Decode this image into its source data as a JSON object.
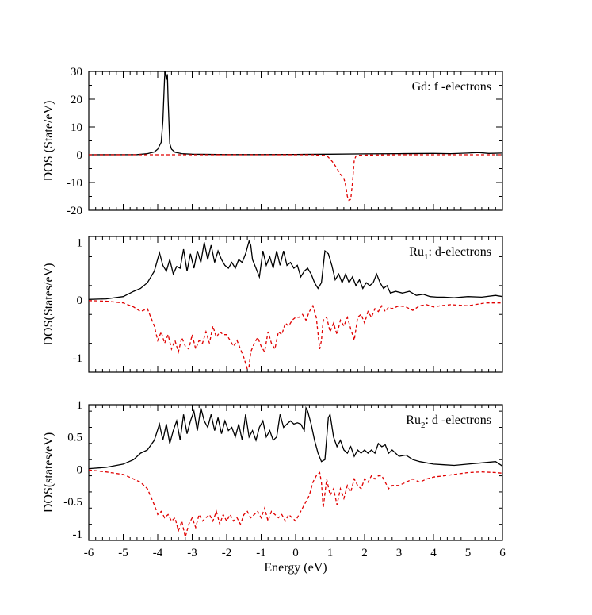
{
  "chart_data": [
    {
      "type": "line",
      "panel_label": "Gd: f -electrons",
      "panel_label_sub": "",
      "panel_label_rest": "",
      "ylabel": "DOS (State/eV)",
      "xlabel": "",
      "xlim": [
        -6,
        6
      ],
      "ylim": [
        -20,
        30
      ],
      "yticks": [
        -20,
        -10,
        0,
        10,
        20,
        30
      ],
      "ytick_labels": [
        "-20",
        "-10",
        "0",
        "10",
        "20",
        "30"
      ],
      "colors": {
        "up": "#000000",
        "down": "#e00000"
      },
      "series": [
        {
          "style": "solid",
          "x": [
            -6,
            -4.6,
            -4.3,
            -4.1,
            -4.0,
            -3.9,
            -3.85,
            -3.8,
            -3.78,
            -3.75,
            -3.72,
            -3.7,
            -3.65,
            -3.6,
            -3.5,
            -3.3,
            -3,
            -2,
            -1,
            0,
            1,
            2,
            3,
            4,
            4.5,
            5,
            5.3,
            5.6,
            6
          ],
          "y": [
            0,
            0.05,
            0.4,
            1.0,
            2.0,
            4.5,
            12,
            28,
            30,
            27,
            29,
            20,
            4,
            2,
            0.9,
            0.4,
            0.2,
            0.05,
            0.05,
            0.1,
            0.2,
            0.3,
            0.4,
            0.5,
            0.4,
            0.6,
            0.8,
            0.5,
            0.6
          ]
        },
        {
          "style": "dashed",
          "x": [
            -6,
            -3,
            0,
            0.5,
            0.9,
            1.0,
            1.1,
            1.2,
            1.3,
            1.4,
            1.45,
            1.5,
            1.55,
            1.6,
            1.65,
            1.7,
            1.75,
            1.8,
            2.0,
            3,
            4,
            5,
            6
          ],
          "y": [
            0,
            0,
            0,
            0,
            -0.3,
            -1.5,
            -3,
            -5,
            -7,
            -8.5,
            -11,
            -15,
            -16.5,
            -16,
            -10,
            -2,
            -0.5,
            -0.2,
            -0.1,
            0,
            0,
            0,
            0
          ]
        }
      ]
    },
    {
      "type": "line",
      "panel_label": "Ru",
      "panel_label_sub": "1",
      "panel_label_rest": ": d-electrons",
      "ylabel": "DOS(States/eV)",
      "xlabel": "",
      "xlim": [
        -6,
        6
      ],
      "ylim": [
        -1.25,
        1.1
      ],
      "yticks": [
        -1,
        0,
        1
      ],
      "ytick_labels": [
        "-1",
        "0",
        "1"
      ],
      "colors": {
        "up": "#000000",
        "down": "#e00000"
      },
      "series": [
        {
          "style": "solid",
          "x": [
            -6,
            -5.5,
            -5.0,
            -4.7,
            -4.5,
            -4.3,
            -4.1,
            -3.95,
            -3.85,
            -3.75,
            -3.65,
            -3.55,
            -3.45,
            -3.35,
            -3.25,
            -3.15,
            -3.05,
            -2.95,
            -2.85,
            -2.75,
            -2.65,
            -2.55,
            -2.45,
            -2.35,
            -2.25,
            -2.15,
            -2.05,
            -1.95,
            -1.85,
            -1.75,
            -1.65,
            -1.55,
            -1.45,
            -1.35,
            -1.3,
            -1.25,
            -1.15,
            -1.05,
            -0.95,
            -0.85,
            -0.75,
            -0.65,
            -0.55,
            -0.45,
            -0.35,
            -0.25,
            -0.15,
            -0.05,
            0.05,
            0.15,
            0.25,
            0.35,
            0.45,
            0.55,
            0.65,
            0.75,
            0.85,
            0.95,
            1.05,
            1.15,
            1.25,
            1.35,
            1.45,
            1.55,
            1.65,
            1.75,
            1.85,
            1.95,
            2.05,
            2.15,
            2.25,
            2.35,
            2.45,
            2.55,
            2.65,
            2.75,
            2.9,
            3.1,
            3.3,
            3.5,
            3.7,
            3.9,
            4.1,
            4.3,
            4.6,
            5.0,
            5.4,
            5.8,
            6.0
          ],
          "y": [
            0.01,
            0.02,
            0.06,
            0.15,
            0.2,
            0.3,
            0.5,
            0.82,
            0.6,
            0.5,
            0.7,
            0.45,
            0.58,
            0.55,
            0.88,
            0.5,
            0.8,
            0.55,
            0.85,
            0.65,
            1.0,
            0.7,
            0.95,
            0.65,
            0.85,
            0.7,
            0.6,
            0.55,
            0.65,
            0.55,
            0.7,
            0.65,
            0.8,
            1.02,
            0.95,
            0.7,
            0.55,
            0.4,
            0.85,
            0.6,
            0.75,
            0.55,
            0.85,
            0.6,
            0.85,
            0.6,
            0.65,
            0.55,
            0.6,
            0.4,
            0.5,
            0.55,
            0.45,
            0.3,
            0.2,
            0.3,
            0.85,
            0.8,
            0.6,
            0.35,
            0.45,
            0.3,
            0.45,
            0.3,
            0.4,
            0.25,
            0.35,
            0.2,
            0.3,
            0.25,
            0.3,
            0.45,
            0.3,
            0.2,
            0.25,
            0.12,
            0.15,
            0.12,
            0.15,
            0.08,
            0.1,
            0.06,
            0.05,
            0.05,
            0.04,
            0.06,
            0.05,
            0.08,
            0.06
          ]
        },
        {
          "style": "dashed",
          "x": [
            -6,
            -5.5,
            -5.0,
            -4.7,
            -4.5,
            -4.3,
            -4.1,
            -4.0,
            -3.9,
            -3.8,
            -3.7,
            -3.6,
            -3.5,
            -3.4,
            -3.3,
            -3.2,
            -3.1,
            -3.0,
            -2.9,
            -2.8,
            -2.7,
            -2.6,
            -2.5,
            -2.4,
            -2.3,
            -2.2,
            -2.1,
            -2.0,
            -1.9,
            -1.8,
            -1.7,
            -1.6,
            -1.5,
            -1.4,
            -1.35,
            -1.3,
            -1.2,
            -1.1,
            -1.0,
            -0.9,
            -0.8,
            -0.7,
            -0.6,
            -0.5,
            -0.4,
            -0.3,
            -0.2,
            -0.1,
            0.0,
            0.1,
            0.2,
            0.3,
            0.4,
            0.5,
            0.6,
            0.7,
            0.75,
            0.8,
            0.9,
            1.0,
            1.1,
            1.2,
            1.3,
            1.4,
            1.5,
            1.6,
            1.7,
            1.8,
            1.9,
            2.0,
            2.1,
            2.2,
            2.3,
            2.4,
            2.5,
            2.6,
            2.7,
            2.8,
            3.0,
            3.2,
            3.4,
            3.6,
            3.8,
            4.0,
            4.2,
            4.5,
            5.0,
            5.5,
            6.0
          ],
          "y": [
            -0.01,
            -0.02,
            -0.05,
            -0.12,
            -0.2,
            -0.15,
            -0.45,
            -0.7,
            -0.55,
            -0.75,
            -0.6,
            -0.85,
            -0.7,
            -0.9,
            -0.65,
            -0.8,
            -0.85,
            -0.6,
            -0.85,
            -0.7,
            -0.75,
            -0.55,
            -0.75,
            -0.45,
            -0.65,
            -0.55,
            -0.6,
            -0.6,
            -0.7,
            -0.8,
            -0.7,
            -0.85,
            -1.0,
            -1.2,
            -1.15,
            -0.9,
            -0.75,
            -0.65,
            -0.8,
            -0.9,
            -0.55,
            -0.75,
            -0.85,
            -0.55,
            -0.6,
            -0.4,
            -0.45,
            -0.35,
            -0.3,
            -0.3,
            -0.25,
            -0.35,
            -0.2,
            -0.1,
            -0.3,
            -0.85,
            -0.7,
            -0.35,
            -0.3,
            -0.55,
            -0.4,
            -0.6,
            -0.35,
            -0.45,
            -0.3,
            -0.5,
            -0.7,
            -0.3,
            -0.25,
            -0.4,
            -0.2,
            -0.3,
            -0.15,
            -0.2,
            -0.1,
            -0.2,
            -0.12,
            -0.15,
            -0.1,
            -0.12,
            -0.18,
            -0.1,
            -0.08,
            -0.12,
            -0.1,
            -0.08,
            -0.1,
            -0.05,
            -0.05
          ]
        }
      ]
    },
    {
      "type": "line",
      "panel_label": "Ru",
      "panel_label_sub": "2",
      "panel_label_rest": ": d -electrons",
      "ylabel": "DOS(states/eV)",
      "xlabel": "Energy (eV)",
      "xlim": [
        -6,
        6
      ],
      "ylim": [
        -1.1,
        1.0
      ],
      "yticks": [
        -1,
        -0.5,
        0,
        0.5,
        1
      ],
      "ytick_labels": [
        "-1",
        "-0.5",
        "0",
        "0.5",
        "1"
      ],
      "xticks": [
        -6,
        -5,
        -4,
        -3,
        -2,
        -1,
        0,
        1,
        2,
        3,
        4,
        5,
        6
      ],
      "xtick_labels": [
        "-6",
        "-5",
        "-4",
        "-3",
        "-2",
        "-1",
        "0",
        "1",
        "2",
        "3",
        "4",
        "5",
        "6"
      ],
      "colors": {
        "up": "#000000",
        "down": "#e00000"
      },
      "series": [
        {
          "style": "solid",
          "x": [
            -6,
            -5.5,
            -5.0,
            -4.7,
            -4.5,
            -4.3,
            -4.1,
            -3.95,
            -3.85,
            -3.75,
            -3.65,
            -3.55,
            -3.45,
            -3.35,
            -3.25,
            -3.15,
            -3.05,
            -2.95,
            -2.85,
            -2.75,
            -2.65,
            -2.55,
            -2.45,
            -2.35,
            -2.25,
            -2.15,
            -2.05,
            -1.95,
            -1.85,
            -1.75,
            -1.65,
            -1.55,
            -1.45,
            -1.35,
            -1.25,
            -1.15,
            -1.05,
            -0.95,
            -0.85,
            -0.75,
            -0.65,
            -0.55,
            -0.45,
            -0.35,
            -0.25,
            -0.15,
            -0.05,
            0.05,
            0.15,
            0.25,
            0.3,
            0.35,
            0.45,
            0.55,
            0.65,
            0.75,
            0.85,
            0.95,
            1.0,
            1.1,
            1.2,
            1.3,
            1.4,
            1.5,
            1.6,
            1.7,
            1.8,
            1.9,
            2.0,
            2.1,
            2.2,
            2.3,
            2.4,
            2.5,
            2.6,
            2.7,
            2.8,
            3.0,
            3.2,
            3.4,
            3.6,
            3.8,
            4.0,
            4.3,
            4.6,
            5.0,
            5.4,
            5.8,
            6.0
          ],
          "y": [
            0.01,
            0.03,
            0.08,
            0.15,
            0.25,
            0.3,
            0.45,
            0.7,
            0.45,
            0.7,
            0.4,
            0.6,
            0.75,
            0.45,
            0.85,
            0.55,
            0.75,
            0.9,
            0.6,
            0.95,
            0.75,
            0.65,
            0.85,
            0.6,
            0.8,
            0.55,
            0.75,
            0.6,
            0.65,
            0.5,
            0.7,
            0.45,
            0.85,
            0.5,
            0.6,
            0.45,
            0.65,
            0.75,
            0.5,
            0.6,
            0.45,
            0.5,
            0.85,
            0.65,
            0.7,
            0.75,
            0.7,
            0.72,
            0.7,
            0.6,
            0.95,
            0.9,
            0.7,
            0.45,
            0.25,
            0.12,
            0.15,
            0.8,
            0.85,
            0.5,
            0.35,
            0.45,
            0.3,
            0.25,
            0.35,
            0.2,
            0.3,
            0.25,
            0.3,
            0.25,
            0.3,
            0.25,
            0.4,
            0.35,
            0.38,
            0.25,
            0.3,
            0.2,
            0.22,
            0.15,
            0.12,
            0.1,
            0.08,
            0.07,
            0.06,
            0.08,
            0.1,
            0.12,
            0.05
          ]
        },
        {
          "style": "dashed",
          "x": [
            -6,
            -5.5,
            -5.0,
            -4.7,
            -4.5,
            -4.3,
            -4.1,
            -4.0,
            -3.9,
            -3.8,
            -3.7,
            -3.6,
            -3.5,
            -3.4,
            -3.3,
            -3.2,
            -3.1,
            -3.0,
            -2.9,
            -2.8,
            -2.7,
            -2.6,
            -2.5,
            -2.4,
            -2.3,
            -2.2,
            -2.1,
            -2.0,
            -1.9,
            -1.8,
            -1.7,
            -1.6,
            -1.5,
            -1.4,
            -1.3,
            -1.2,
            -1.1,
            -1.0,
            -0.9,
            -0.8,
            -0.7,
            -0.6,
            -0.5,
            -0.4,
            -0.3,
            -0.2,
            -0.1,
            0.0,
            0.1,
            0.2,
            0.3,
            0.4,
            0.5,
            0.6,
            0.7,
            0.75,
            0.8,
            0.9,
            1.0,
            1.1,
            1.2,
            1.3,
            1.4,
            1.5,
            1.6,
            1.7,
            1.8,
            1.9,
            2.0,
            2.1,
            2.2,
            2.3,
            2.4,
            2.5,
            2.6,
            2.7,
            2.8,
            3.0,
            3.2,
            3.4,
            3.6,
            3.8,
            4.0,
            4.3,
            4.6,
            5.0,
            5.4,
            5.8,
            6.0
          ],
          "y": [
            -0.01,
            -0.04,
            -0.08,
            -0.15,
            -0.2,
            -0.3,
            -0.55,
            -0.7,
            -0.65,
            -0.75,
            -0.7,
            -0.8,
            -0.75,
            -0.95,
            -0.8,
            -1.05,
            -0.85,
            -0.75,
            -0.9,
            -0.7,
            -0.8,
            -0.75,
            -0.7,
            -0.8,
            -0.65,
            -0.85,
            -0.7,
            -0.8,
            -0.7,
            -0.8,
            -0.75,
            -0.85,
            -0.7,
            -0.65,
            -0.75,
            -0.7,
            -0.65,
            -0.75,
            -0.6,
            -0.8,
            -0.65,
            -0.7,
            -0.75,
            -0.7,
            -0.8,
            -0.7,
            -0.75,
            -0.8,
            -0.7,
            -0.6,
            -0.5,
            -0.4,
            -0.2,
            -0.1,
            -0.05,
            -0.2,
            -0.6,
            -0.15,
            -0.4,
            -0.3,
            -0.55,
            -0.3,
            -0.45,
            -0.25,
            -0.35,
            -0.15,
            -0.25,
            -0.3,
            -0.15,
            -0.2,
            -0.1,
            -0.15,
            -0.1,
            -0.1,
            -0.2,
            -0.3,
            -0.25,
            -0.25,
            -0.2,
            -0.15,
            -0.2,
            -0.15,
            -0.12,
            -0.1,
            -0.08,
            -0.05,
            -0.04,
            -0.05,
            -0.06
          ]
        }
      ]
    }
  ]
}
